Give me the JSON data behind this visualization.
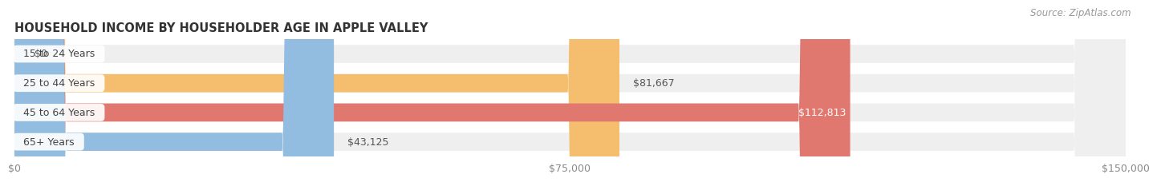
{
  "title": "HOUSEHOLD INCOME BY HOUSEHOLDER AGE IN APPLE VALLEY",
  "source": "Source: ZipAtlas.com",
  "categories": [
    "15 to 24 Years",
    "25 to 44 Years",
    "45 to 64 Years",
    "65+ Years"
  ],
  "values": [
    0,
    81667,
    112813,
    43125
  ],
  "bar_colors": [
    "#f5a0b5",
    "#f5be6e",
    "#e07870",
    "#92bce0"
  ],
  "bar_bg_color": "#efefef",
  "xlim": [
    0,
    150000
  ],
  "xticks": [
    0,
    75000,
    150000
  ],
  "xtick_labels": [
    "$0",
    "$75,000",
    "$150,000"
  ],
  "title_fontsize": 10.5,
  "tick_fontsize": 9,
  "bar_label_fontsize": 9,
  "source_fontsize": 8.5,
  "background_color": "#ffffff",
  "bar_height": 0.62,
  "bar_spacing": 1.0
}
